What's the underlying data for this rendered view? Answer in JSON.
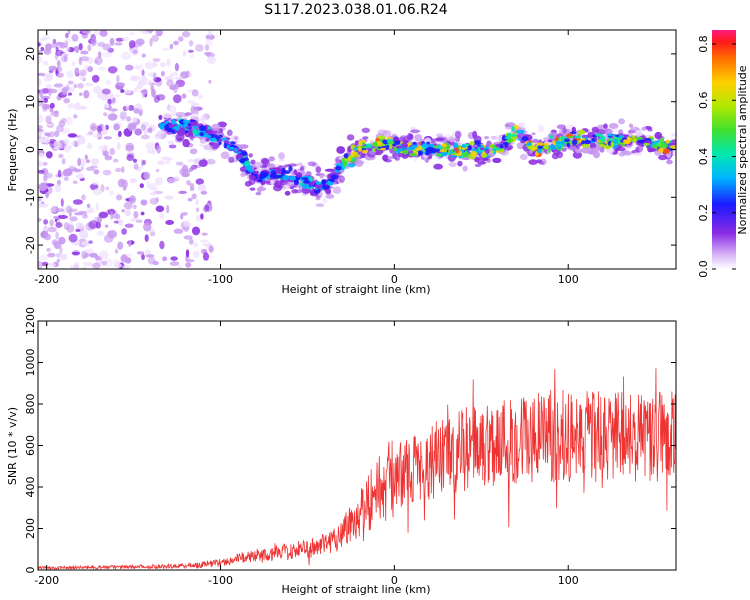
{
  "title": "S117.2023.038.01.06.R24",
  "chart_data": [
    {
      "type": "heatmap",
      "xlabel": "Height of straight line (km)",
      "ylabel": "Frequency (Hz)",
      "xlim": [
        -205,
        162
      ],
      "ylim": [
        -25,
        25
      ],
      "x_ticks": [
        -200,
        -100,
        0,
        100
      ],
      "y_ticks": [
        -20,
        -10,
        0,
        10,
        20
      ],
      "colorbar": {
        "label": "Normalized spectral amplitude",
        "range": [
          0,
          0.85
        ],
        "ticks": [
          0.0,
          0.2,
          0.4,
          0.6,
          0.8
        ]
      },
      "ridge": {
        "x": [
          -135,
          -120,
          -110,
          -100,
          -90,
          -80,
          -70,
          -60,
          -50,
          -40,
          -30,
          -20,
          -10,
          0,
          20,
          40,
          60,
          70,
          80,
          100,
          120,
          140,
          162
        ],
        "frequency": [
          5,
          5,
          4,
          2,
          0,
          -6,
          -5,
          -6,
          -7,
          -8,
          -3,
          0,
          1,
          1,
          0,
          0,
          0,
          4,
          0,
          2,
          2,
          2,
          0
        ]
      },
      "noise_region_x": [
        -205,
        -130
      ]
    },
    {
      "type": "line",
      "xlabel": "Height of straight line (km)",
      "ylabel": "SNR (10 * v/v)",
      "xlim": [
        -205,
        162
      ],
      "ylim": [
        0,
        1200
      ],
      "x_ticks": [
        -200,
        -100,
        0,
        100
      ],
      "y_ticks": [
        0,
        200,
        400,
        600,
        800,
        1000,
        1200
      ],
      "series": [
        {
          "color": "#ee3333",
          "envelope_x": [
            -205,
            -150,
            -120,
            -100,
            -90,
            -80,
            -60,
            -40,
            -30,
            -20,
            -10,
            0,
            20,
            40,
            60,
            80,
            100,
            120,
            140,
            162
          ],
          "envelope_y": [
            10,
            15,
            20,
            35,
            55,
            70,
            90,
            120,
            180,
            280,
            380,
            450,
            520,
            580,
            620,
            640,
            650,
            640,
            640,
            650
          ]
        }
      ]
    }
  ]
}
